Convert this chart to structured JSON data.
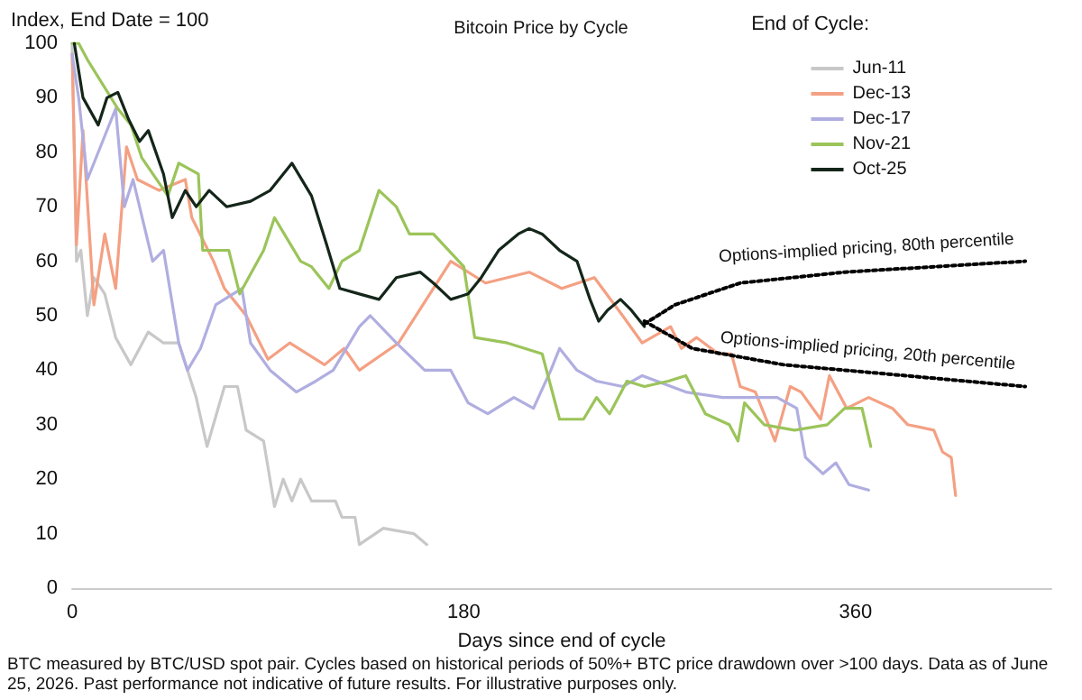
{
  "chart_data": {
    "type": "line",
    "title": "Bitcoin Price by Cycle",
    "ylabel": "Index, End Date = 100",
    "xlabel": "Days since end of cycle",
    "legend_title": "End of Cycle:",
    "legend": "top right",
    "grid": false,
    "marker": "none",
    "line_style": "solid",
    "xlim": [
      0,
      450
    ],
    "xticks": [
      0,
      180,
      360
    ],
    "ylim": [
      0,
      100
    ],
    "yticks": [
      0,
      10,
      20,
      30,
      40,
      50,
      60,
      70,
      80,
      90,
      100
    ],
    "series": [
      {
        "name": "Jun-11",
        "color": "#c8c8c8",
        "x": [
          0,
          2,
          4,
          7,
          10,
          15,
          20,
          27,
          35,
          42,
          49,
          57,
          62,
          70,
          76,
          80,
          88,
          93,
          97,
          101,
          105,
          110,
          121,
          124,
          130,
          132,
          143,
          157,
          163
        ],
        "values": [
          100,
          60,
          62,
          50,
          57,
          54,
          46,
          41,
          47,
          45,
          45,
          35,
          26,
          37,
          37,
          29,
          27,
          15,
          20,
          16,
          20,
          16,
          16,
          13,
          13,
          8,
          11,
          10,
          8
        ]
      },
      {
        "name": "Dec-13",
        "color": "#f4a083",
        "x": [
          0,
          2,
          5,
          10,
          15,
          20,
          25,
          30,
          40,
          52,
          55,
          65,
          70,
          80,
          90,
          100,
          116,
          125,
          132,
          150,
          174,
          190,
          210,
          225,
          240,
          253,
          262,
          275,
          280,
          287,
          297,
          303,
          307,
          314,
          323,
          330,
          335,
          344,
          348,
          356,
          366,
          377,
          384,
          396,
          400,
          404,
          406
        ],
        "values": [
          98,
          63,
          84,
          52,
          65,
          55,
          81,
          75,
          73,
          75,
          68,
          60,
          55,
          50,
          42,
          45,
          41,
          44,
          40,
          45,
          60,
          56,
          58,
          55,
          57,
          50,
          45,
          48,
          44,
          46,
          43,
          43,
          37,
          36,
          27,
          37,
          36,
          31,
          39,
          33,
          35,
          33,
          30,
          29,
          25,
          24,
          17
        ]
      },
      {
        "name": "Dec-17",
        "color": "#b0aee0",
        "x": [
          0,
          3,
          7,
          14,
          20,
          24,
          28,
          37,
          42,
          49,
          53,
          59,
          66,
          78,
          82,
          91,
          103,
          112,
          120,
          132,
          137,
          149,
          162,
          174,
          182,
          191,
          203,
          212,
          220,
          224,
          232,
          241,
          253,
          262,
          282,
          299,
          324,
          333,
          337,
          345,
          351,
          357,
          366
        ],
        "values": [
          98,
          90,
          75,
          82,
          88,
          70,
          75,
          60,
          62,
          45,
          40,
          44,
          52,
          55,
          45,
          40,
          36,
          38,
          40,
          48,
          50,
          45,
          40,
          40,
          34,
          32,
          35,
          33,
          40,
          44,
          40,
          38,
          37,
          39,
          36,
          35,
          35,
          33,
          24,
          21,
          23,
          19,
          18
        ]
      },
      {
        "name": "Nov-21",
        "color": "#9bc45a",
        "x": [
          0,
          3,
          7,
          21,
          27,
          32,
          44,
          49,
          58,
          60,
          72,
          77,
          88,
          93,
          105,
          110,
          118,
          124,
          132,
          141,
          149,
          155,
          166,
          180,
          185,
          200,
          216,
          224,
          235,
          241,
          247,
          255,
          263,
          274,
          282,
          291,
          302,
          306,
          309,
          318,
          332,
          347,
          355,
          363,
          367
        ],
        "values": [
          100,
          100,
          97,
          88,
          85,
          79,
          72,
          78,
          76,
          62,
          62,
          54,
          62,
          68,
          60,
          59,
          55,
          60,
          62,
          73,
          70,
          65,
          65,
          59,
          46,
          45,
          43,
          31,
          31,
          35,
          32,
          38,
          37,
          38,
          39,
          32,
          30,
          27,
          34,
          30,
          29,
          30,
          33,
          33,
          26
        ]
      },
      {
        "name": "Oct-25",
        "color": "#14261a",
        "x": [
          1,
          5,
          12,
          16,
          21,
          26,
          31,
          35,
          42,
          46,
          52,
          57,
          63,
          71,
          82,
          91,
          101,
          110,
          117,
          123,
          132,
          141,
          149,
          160,
          166,
          174,
          182,
          188,
          196,
          205,
          210,
          216,
          224,
          232,
          238,
          242,
          246,
          252,
          257,
          263
        ],
        "values": [
          100,
          90,
          85,
          90,
          91,
          86,
          82,
          84,
          76,
          68,
          73,
          70,
          73,
          70,
          71,
          73,
          78,
          72,
          63,
          55,
          54,
          53,
          57,
          58,
          56,
          53,
          54,
          57,
          62,
          65,
          66,
          65,
          62,
          60,
          53,
          49,
          51,
          53,
          51,
          48
        ]
      },
      {
        "color": "#000000",
        "line_style": "dotted",
        "x": [
          263,
          277,
          307,
          355,
          438
        ],
        "values": [
          48.5,
          52,
          56,
          58,
          60
        ]
      },
      {
        "color": "#000000",
        "line_style": "dotted",
        "x": [
          263,
          285,
          327,
          383,
          438
        ],
        "values": [
          49,
          44,
          41,
          39,
          37
        ]
      }
    ],
    "annotations": [
      "Options-implied pricing, 80th percentile",
      "Options-implied pricing, 20th percentile",
      "BTC measured by BTC/USD spot pair. Cycles based on historical periods of 50%+ BTC price drawdown over >100 days. Data as of June 25, 2026. Past performance not indicative of future results. For illustrative purposes only."
    ]
  }
}
